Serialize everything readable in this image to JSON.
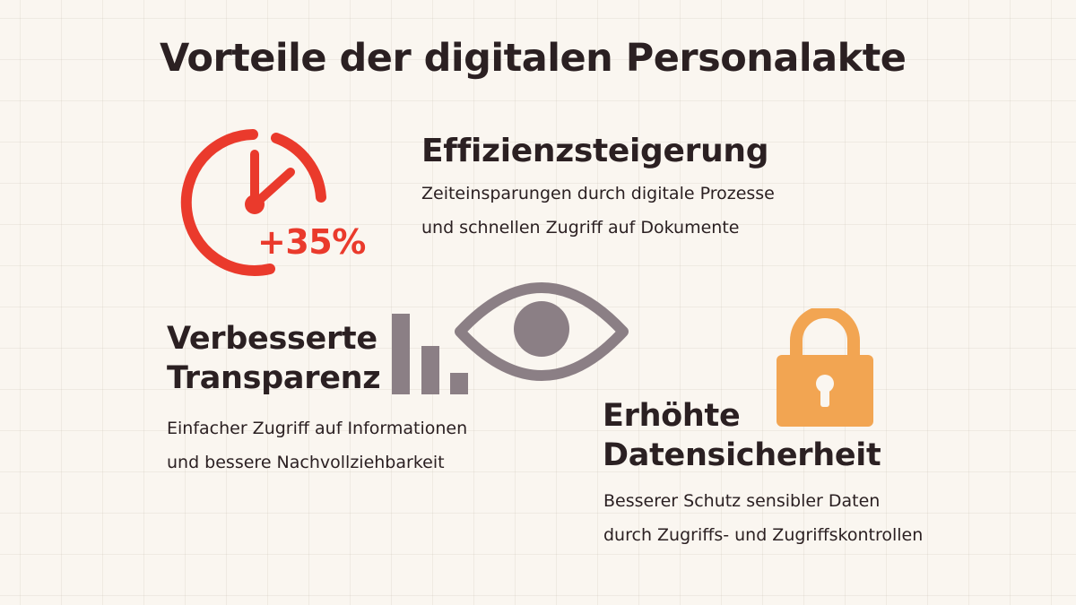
{
  "title": "Vorteile der digitalen Personalakte",
  "colors": {
    "accent_red": "#ea3a2c",
    "accent_gray": "#8b7f85",
    "accent_orange": "#f2a552",
    "text": "#2b2022",
    "background": "#faf6f0"
  },
  "benefits": [
    {
      "icon": "clock-icon",
      "badge": "+35%",
      "heading": [
        "Effizienzsteigerung"
      ],
      "description": [
        "Zeiteinsparungen durch digitale Prozesse",
        "und schnellen Zugriff auf Dokumente"
      ]
    },
    {
      "icon": "eye-icon",
      "icon_secondary": "bar-chart-icon",
      "heading": [
        "Verbesserte",
        "Transparenz"
      ],
      "description": [
        "Einfacher Zugriff auf Informationen",
        "und bessere Nachvollziehbarkeit"
      ]
    },
    {
      "icon": "lock-icon",
      "heading": [
        "Erhöhte",
        "Datensicherheit"
      ],
      "description": [
        "Besserer Schutz sensibler Daten",
        "durch Zugriffs- und Zugriffskontrollen"
      ]
    }
  ]
}
